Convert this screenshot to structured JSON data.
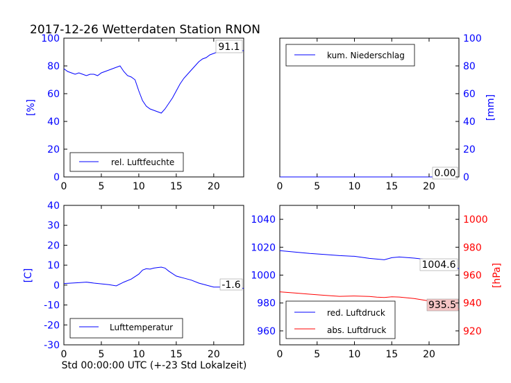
{
  "title": "2017-12-26 Wetterdaten Station RNON",
  "xlabel": "Std 00:00:00 UTC (+-23 Std Lokalzeit)",
  "colors": {
    "blue": "#0000ff",
    "red": "#ff0000",
    "label_bg": "#ffffff",
    "red_label_bg": "#f4c4c4"
  },
  "chart_data": [
    {
      "id": "humidity",
      "type": "line",
      "ylabel": "[%]",
      "xlim": [
        0,
        24
      ],
      "ylim": [
        0,
        100
      ],
      "xticks": [
        0,
        5,
        10,
        15,
        20
      ],
      "yticks": [
        0,
        20,
        40,
        60,
        80,
        100
      ],
      "axis_side": "left",
      "legend": "bottom-left",
      "series": [
        {
          "name": "rel. Luftfeuchte",
          "color": "#0000ff",
          "x": [
            0,
            0.5,
            1,
            1.5,
            2,
            2.5,
            3,
            3.5,
            4,
            4.5,
            5,
            5.5,
            6,
            6.5,
            7,
            7.5,
            8,
            8.5,
            9,
            9.5,
            10,
            10.5,
            11,
            11.5,
            12,
            12.5,
            13,
            13.5,
            14,
            14.5,
            15,
            15.5,
            16,
            16.5,
            17,
            17.5,
            18,
            18.5,
            19,
            19.5,
            20,
            20.5,
            21,
            21.5,
            22,
            22.5,
            23,
            23.5,
            24
          ],
          "y": [
            78,
            76,
            75,
            74,
            75,
            74,
            73,
            74,
            74,
            73,
            75,
            76,
            77,
            78,
            79,
            80,
            76,
            73,
            72,
            70,
            62,
            55,
            51,
            49,
            48,
            47,
            46,
            49,
            53,
            57,
            62,
            67,
            71,
            74,
            77,
            80,
            83,
            85,
            86,
            88,
            89,
            90,
            91,
            91,
            91,
            92,
            92,
            91,
            91
          ]
        }
      ],
      "last_value_label": "91.1"
    },
    {
      "id": "precipitation",
      "type": "line",
      "ylabel": "[mm]",
      "xlim": [
        0,
        24
      ],
      "ylim": [
        0,
        100
      ],
      "xticks": [
        0,
        5,
        10,
        15,
        20
      ],
      "yticks": [
        0,
        20,
        40,
        60,
        80,
        100
      ],
      "axis_side": "right",
      "legend": "top-left",
      "series": [
        {
          "name": "kum. Niederschlag",
          "color": "#0000ff",
          "x": [
            0,
            24
          ],
          "y": [
            0,
            0
          ]
        }
      ],
      "last_value_label": "0.00"
    },
    {
      "id": "temperature",
      "type": "line",
      "ylabel": "[C]",
      "xlim": [
        0,
        24
      ],
      "ylim": [
        -30,
        40
      ],
      "xticks": [
        0,
        5,
        10,
        15,
        20
      ],
      "yticks": [
        -30,
        -20,
        -10,
        0,
        10,
        20,
        30,
        40
      ],
      "axis_side": "left",
      "legend": "bottom-left",
      "series": [
        {
          "name": "Lufttemperatur",
          "color": "#0000ff",
          "x": [
            0,
            1,
            2,
            3,
            4,
            5,
            6,
            7,
            8,
            9,
            10,
            10.5,
            11,
            11.5,
            12,
            12.5,
            13,
            13.5,
            14,
            15,
            16,
            17,
            18,
            19,
            20,
            21,
            22,
            23,
            24
          ],
          "y": [
            0.8,
            1,
            1.2,
            1.5,
            1,
            0.6,
            0.2,
            -0.4,
            1.5,
            3,
            5.5,
            7.5,
            8.2,
            8,
            8.5,
            8.8,
            9,
            8.5,
            7,
            4.5,
            3.5,
            2.5,
            1,
            0,
            -1,
            -1,
            -1.2,
            -1.5,
            -1.6
          ]
        }
      ],
      "last_value_label": "-1.6"
    },
    {
      "id": "pressure",
      "type": "line",
      "ylabel": "",
      "ylabel_right": "[hPa]",
      "xlim": [
        0,
        24
      ],
      "ylim": [
        950,
        1050
      ],
      "ylim_right": [
        910,
        1010
      ],
      "xticks": [
        0,
        5,
        10,
        15,
        20
      ],
      "yticks": [
        960,
        980,
        1000,
        1020,
        1040
      ],
      "yticks_right": [
        920,
        940,
        960,
        980,
        1000
      ],
      "axis_side": "both",
      "legend": "bottom-left",
      "series": [
        {
          "name": "red. Luftdruck",
          "color": "#0000ff",
          "axis": "left",
          "x": [
            0,
            2,
            4,
            6,
            8,
            10,
            12,
            13,
            14,
            15,
            16,
            18,
            20,
            22,
            24
          ],
          "y": [
            1017.5,
            1016.5,
            1015.5,
            1014.8,
            1014,
            1013.5,
            1012,
            1011.5,
            1011,
            1012.5,
            1013,
            1012.2,
            1011,
            1009,
            1004.6
          ]
        },
        {
          "name": "abs. Luftdruck",
          "color": "#ff0000",
          "axis": "right",
          "x": [
            0,
            2,
            4,
            6,
            8,
            10,
            12,
            13,
            14,
            15,
            16,
            18,
            20,
            22,
            24
          ],
          "y": [
            948,
            947.2,
            946.3,
            945.5,
            944.8,
            945,
            944.7,
            944.2,
            944,
            944.5,
            944.3,
            943.2,
            941.5,
            939,
            935.5
          ]
        }
      ],
      "value_labels": [
        "1004.6",
        "935.5"
      ]
    }
  ]
}
